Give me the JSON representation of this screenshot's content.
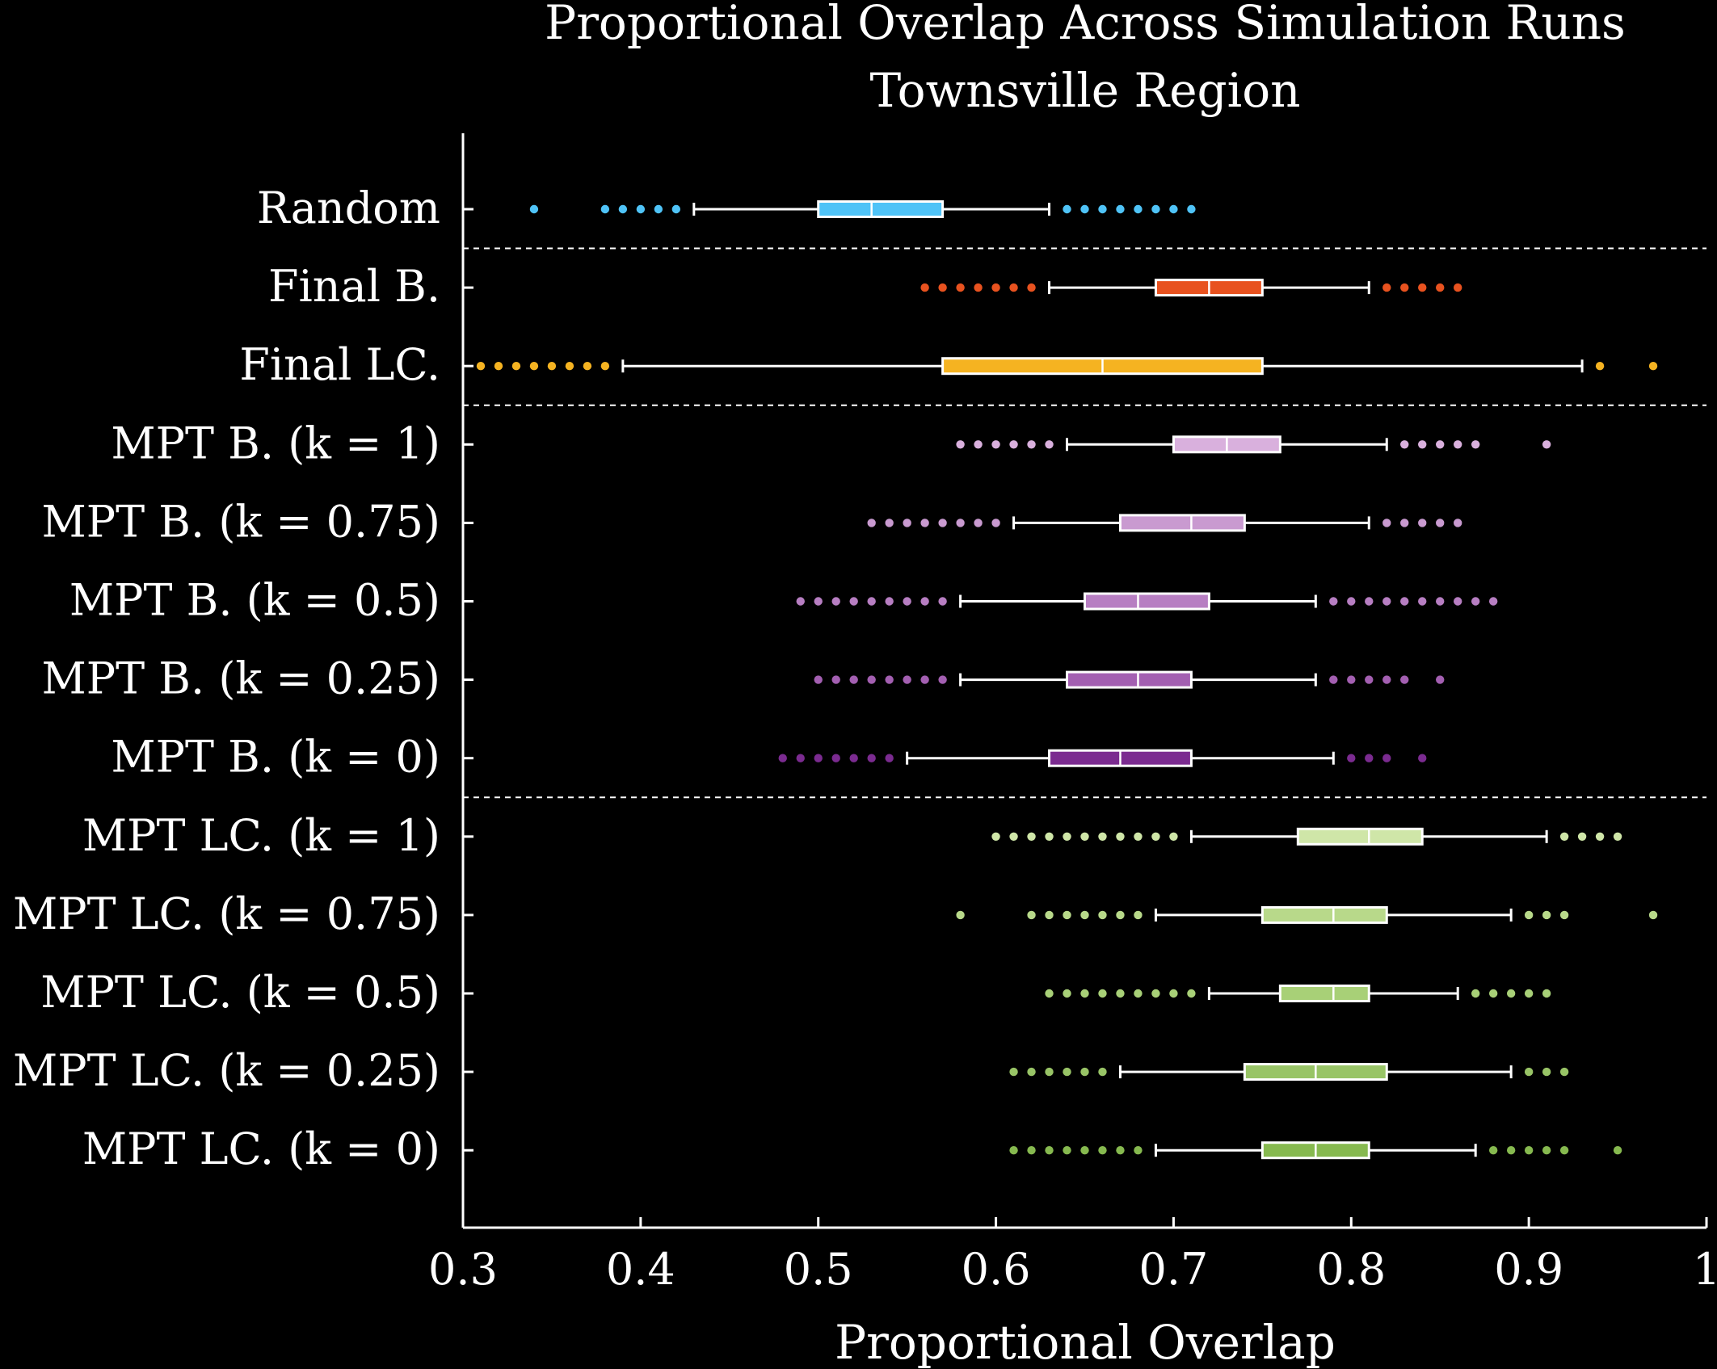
{
  "chart_data": {
    "type": "boxplot",
    "orientation": "horizontal",
    "title": "Proportional Overlap Across Simulation Runs",
    "subtitle": "Townsville Region",
    "xlabel": "Proportional Overlap",
    "ylabel": "",
    "xlim": [
      0.3,
      1.0
    ],
    "x_ticks": [
      0.3,
      0.4,
      0.5,
      0.6,
      0.7,
      0.8,
      0.9,
      1.0
    ],
    "x_tick_labels": [
      "0.3",
      "0.4",
      "0.5",
      "0.6",
      "0.7",
      "0.8",
      "0.9",
      "1"
    ],
    "grid": false,
    "group_separators_after": [
      "Random",
      "Final LC.",
      "MPT B. (k = 0)"
    ],
    "series": [
      {
        "name": "Random",
        "color": "#4fc3f7",
        "q1": 0.5,
        "median": 0.53,
        "q3": 0.57,
        "whisker_low": 0.43,
        "whisker_high": 0.63,
        "outliers": [
          0.34,
          0.38,
          0.39,
          0.4,
          0.41,
          0.42,
          0.64,
          0.65,
          0.66,
          0.67,
          0.68,
          0.69,
          0.7,
          0.71
        ]
      },
      {
        "name": "Final B.",
        "color": "#e8521f",
        "q1": 0.69,
        "median": 0.72,
        "q3": 0.75,
        "whisker_low": 0.63,
        "whisker_high": 0.81,
        "outliers": [
          0.56,
          0.57,
          0.58,
          0.59,
          0.6,
          0.61,
          0.62,
          0.82,
          0.83,
          0.84,
          0.85,
          0.86
        ]
      },
      {
        "name": "Final LC.",
        "color": "#f5b321",
        "q1": 0.57,
        "median": 0.66,
        "q3": 0.75,
        "whisker_low": 0.39,
        "whisker_high": 0.93,
        "outliers": [
          0.31,
          0.32,
          0.33,
          0.34,
          0.35,
          0.36,
          0.37,
          0.38,
          0.94,
          0.97
        ]
      },
      {
        "name": "MPT B. (k = 1)",
        "color": "#d9b0dd",
        "q1": 0.7,
        "median": 0.73,
        "q3": 0.76,
        "whisker_low": 0.64,
        "whisker_high": 0.82,
        "outliers": [
          0.58,
          0.59,
          0.6,
          0.61,
          0.62,
          0.63,
          0.83,
          0.84,
          0.85,
          0.86,
          0.87,
          0.91
        ]
      },
      {
        "name": "MPT B. (k = 0.75)",
        "color": "#c99ad0",
        "q1": 0.67,
        "median": 0.71,
        "q3": 0.74,
        "whisker_low": 0.61,
        "whisker_high": 0.81,
        "outliers": [
          0.53,
          0.54,
          0.55,
          0.56,
          0.57,
          0.58,
          0.59,
          0.6,
          0.82,
          0.83,
          0.84,
          0.85,
          0.86
        ]
      },
      {
        "name": "MPT B. (k = 0.5)",
        "color": "#b77ec2",
        "q1": 0.65,
        "median": 0.68,
        "q3": 0.72,
        "whisker_low": 0.58,
        "whisker_high": 0.78,
        "outliers": [
          0.49,
          0.5,
          0.51,
          0.52,
          0.53,
          0.54,
          0.55,
          0.56,
          0.57,
          0.79,
          0.8,
          0.81,
          0.82,
          0.83,
          0.84,
          0.85,
          0.86,
          0.87,
          0.88
        ]
      },
      {
        "name": "MPT B. (k = 0.25)",
        "color": "#a35fb1",
        "q1": 0.64,
        "median": 0.68,
        "q3": 0.71,
        "whisker_low": 0.58,
        "whisker_high": 0.78,
        "outliers": [
          0.5,
          0.51,
          0.52,
          0.53,
          0.54,
          0.55,
          0.56,
          0.57,
          0.79,
          0.8,
          0.81,
          0.82,
          0.83,
          0.85
        ]
      },
      {
        "name": "MPT B. (k = 0)",
        "color": "#7b2b90",
        "q1": 0.63,
        "median": 0.67,
        "q3": 0.71,
        "whisker_low": 0.55,
        "whisker_high": 0.79,
        "outliers": [
          0.48,
          0.49,
          0.5,
          0.51,
          0.52,
          0.53,
          0.54,
          0.8,
          0.81,
          0.82,
          0.84
        ]
      },
      {
        "name": "MPT LC. (k = 1)",
        "color": "#cfe6a8",
        "q1": 0.77,
        "median": 0.81,
        "q3": 0.84,
        "whisker_low": 0.71,
        "whisker_high": 0.91,
        "outliers": [
          0.6,
          0.61,
          0.62,
          0.63,
          0.64,
          0.65,
          0.66,
          0.67,
          0.68,
          0.69,
          0.7,
          0.92,
          0.93,
          0.94,
          0.95
        ]
      },
      {
        "name": "MPT LC. (k = 0.75)",
        "color": "#b8d98a",
        "q1": 0.75,
        "median": 0.79,
        "q3": 0.82,
        "whisker_low": 0.69,
        "whisker_high": 0.89,
        "outliers": [
          0.58,
          0.62,
          0.63,
          0.64,
          0.65,
          0.66,
          0.67,
          0.68,
          0.9,
          0.91,
          0.92,
          0.97
        ]
      },
      {
        "name": "MPT LC. (k = 0.5)",
        "color": "#a8d077",
        "q1": 0.76,
        "median": 0.79,
        "q3": 0.81,
        "whisker_low": 0.72,
        "whisker_high": 0.86,
        "outliers": [
          0.63,
          0.64,
          0.65,
          0.66,
          0.67,
          0.68,
          0.69,
          0.7,
          0.71,
          0.87,
          0.88,
          0.89,
          0.9,
          0.91
        ]
      },
      {
        "name": "MPT LC. (k = 0.25)",
        "color": "#98c466",
        "q1": 0.74,
        "median": 0.78,
        "q3": 0.82,
        "whisker_low": 0.67,
        "whisker_high": 0.89,
        "outliers": [
          0.61,
          0.62,
          0.63,
          0.64,
          0.65,
          0.66,
          0.9,
          0.91,
          0.92
        ]
      },
      {
        "name": "MPT LC. (k = 0)",
        "color": "#86b94f",
        "q1": 0.75,
        "median": 0.78,
        "q3": 0.81,
        "whisker_low": 0.69,
        "whisker_high": 0.87,
        "outliers": [
          0.61,
          0.62,
          0.63,
          0.64,
          0.65,
          0.66,
          0.67,
          0.68,
          0.88,
          0.89,
          0.9,
          0.91,
          0.92,
          0.95
        ]
      }
    ]
  }
}
